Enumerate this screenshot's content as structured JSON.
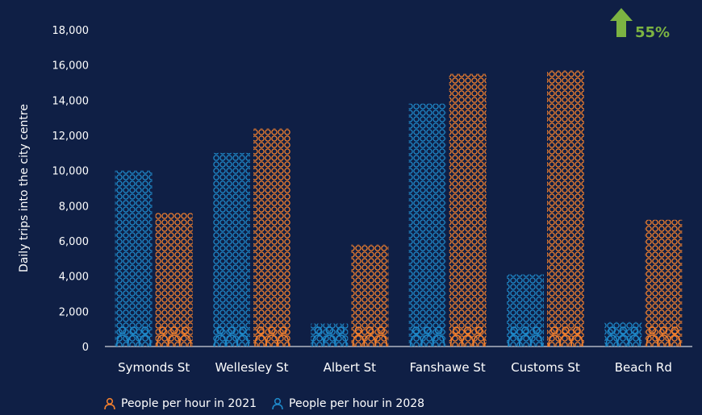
{
  "chart_data": {
    "type": "bar",
    "ylabel": "Daily trips into the city centre",
    "xlabel": "",
    "ylim": [
      0,
      18000
    ],
    "yticks": [
      "0",
      "2,000",
      "4,000",
      "6,000",
      "8,000",
      "10,000",
      "12,000",
      "14,000",
      "16,000",
      "18,000"
    ],
    "categories": [
      "Symonds St",
      "Wellesley St",
      "Albert St",
      "Fanshawe St",
      "Customs St",
      "Beach Rd"
    ],
    "series": [
      {
        "name": "People per hour in 2028",
        "color": "#1e88c8",
        "values": [
          10000,
          11000,
          1300,
          13800,
          4100,
          1400
        ]
      },
      {
        "name": "People per hour in 2021",
        "color": "#f07f2e",
        "values": [
          7600,
          12400,
          5800,
          15500,
          15700,
          7200
        ]
      }
    ],
    "annotation": {
      "text": "55%",
      "icon": "up-arrow-icon",
      "color": "#7cb342"
    },
    "grid": false,
    "legend_position": "bottom-left"
  },
  "legend": {
    "items": [
      {
        "label": "People per hour in 2021",
        "icon": "person-icon",
        "color": "#f07f2e"
      },
      {
        "label": "People per hour in 2028",
        "icon": "person-icon",
        "color": "#1e88c8"
      }
    ]
  }
}
